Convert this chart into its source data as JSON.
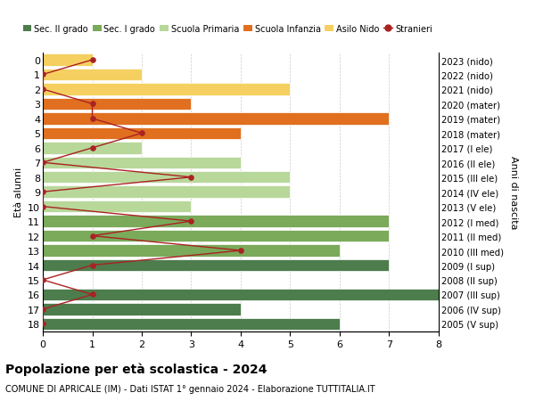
{
  "ages": [
    18,
    17,
    16,
    15,
    14,
    13,
    12,
    11,
    10,
    9,
    8,
    7,
    6,
    5,
    4,
    3,
    2,
    1,
    0
  ],
  "right_labels": [
    "2005 (V sup)",
    "2006 (IV sup)",
    "2007 (III sup)",
    "2008 (II sup)",
    "2009 (I sup)",
    "2010 (III med)",
    "2011 (II med)",
    "2012 (I med)",
    "2013 (V ele)",
    "2014 (IV ele)",
    "2015 (III ele)",
    "2016 (II ele)",
    "2017 (I ele)",
    "2018 (mater)",
    "2019 (mater)",
    "2020 (mater)",
    "2021 (nido)",
    "2022 (nido)",
    "2023 (nido)"
  ],
  "bar_values": [
    6,
    4,
    8,
    0,
    7,
    6,
    7,
    7,
    3,
    5,
    5,
    4,
    2,
    4,
    7,
    3,
    5,
    2,
    1
  ],
  "bar_colors": [
    "#4d7c4d",
    "#4d7c4d",
    "#4d7c4d",
    "#4d7c4d",
    "#4d7c4d",
    "#7aaa5a",
    "#7aaa5a",
    "#7aaa5a",
    "#b8d89a",
    "#b8d89a",
    "#b8d89a",
    "#b8d89a",
    "#b8d89a",
    "#e07020",
    "#e07020",
    "#e07020",
    "#f5d060",
    "#f5d060",
    "#f5d060"
  ],
  "stranieri_values": [
    0,
    0,
    1,
    0,
    1,
    4,
    1,
    3,
    0,
    0,
    3,
    0,
    1,
    2,
    1,
    1,
    0,
    0,
    1
  ],
  "title": "Popolazione per età scolastica - 2024",
  "subtitle": "COMUNE DI APRICALE (IM) - Dati ISTAT 1° gennaio 2024 - Elaborazione TUTTITALIA.IT",
  "ylabel_left": "Età alunni",
  "ylabel_right": "Anni di nascita",
  "xlim": [
    0,
    8
  ],
  "color_sec2": "#4d7c4d",
  "color_sec1": "#7aaa5a",
  "color_prim": "#b8d89a",
  "color_inf": "#e07020",
  "color_nido": "#f5d060",
  "color_stranieri": "#aa2222",
  "legend_labels": [
    "Sec. II grado",
    "Sec. I grado",
    "Scuola Primaria",
    "Scuola Infanzia",
    "Asilo Nido",
    "Stranieri"
  ]
}
